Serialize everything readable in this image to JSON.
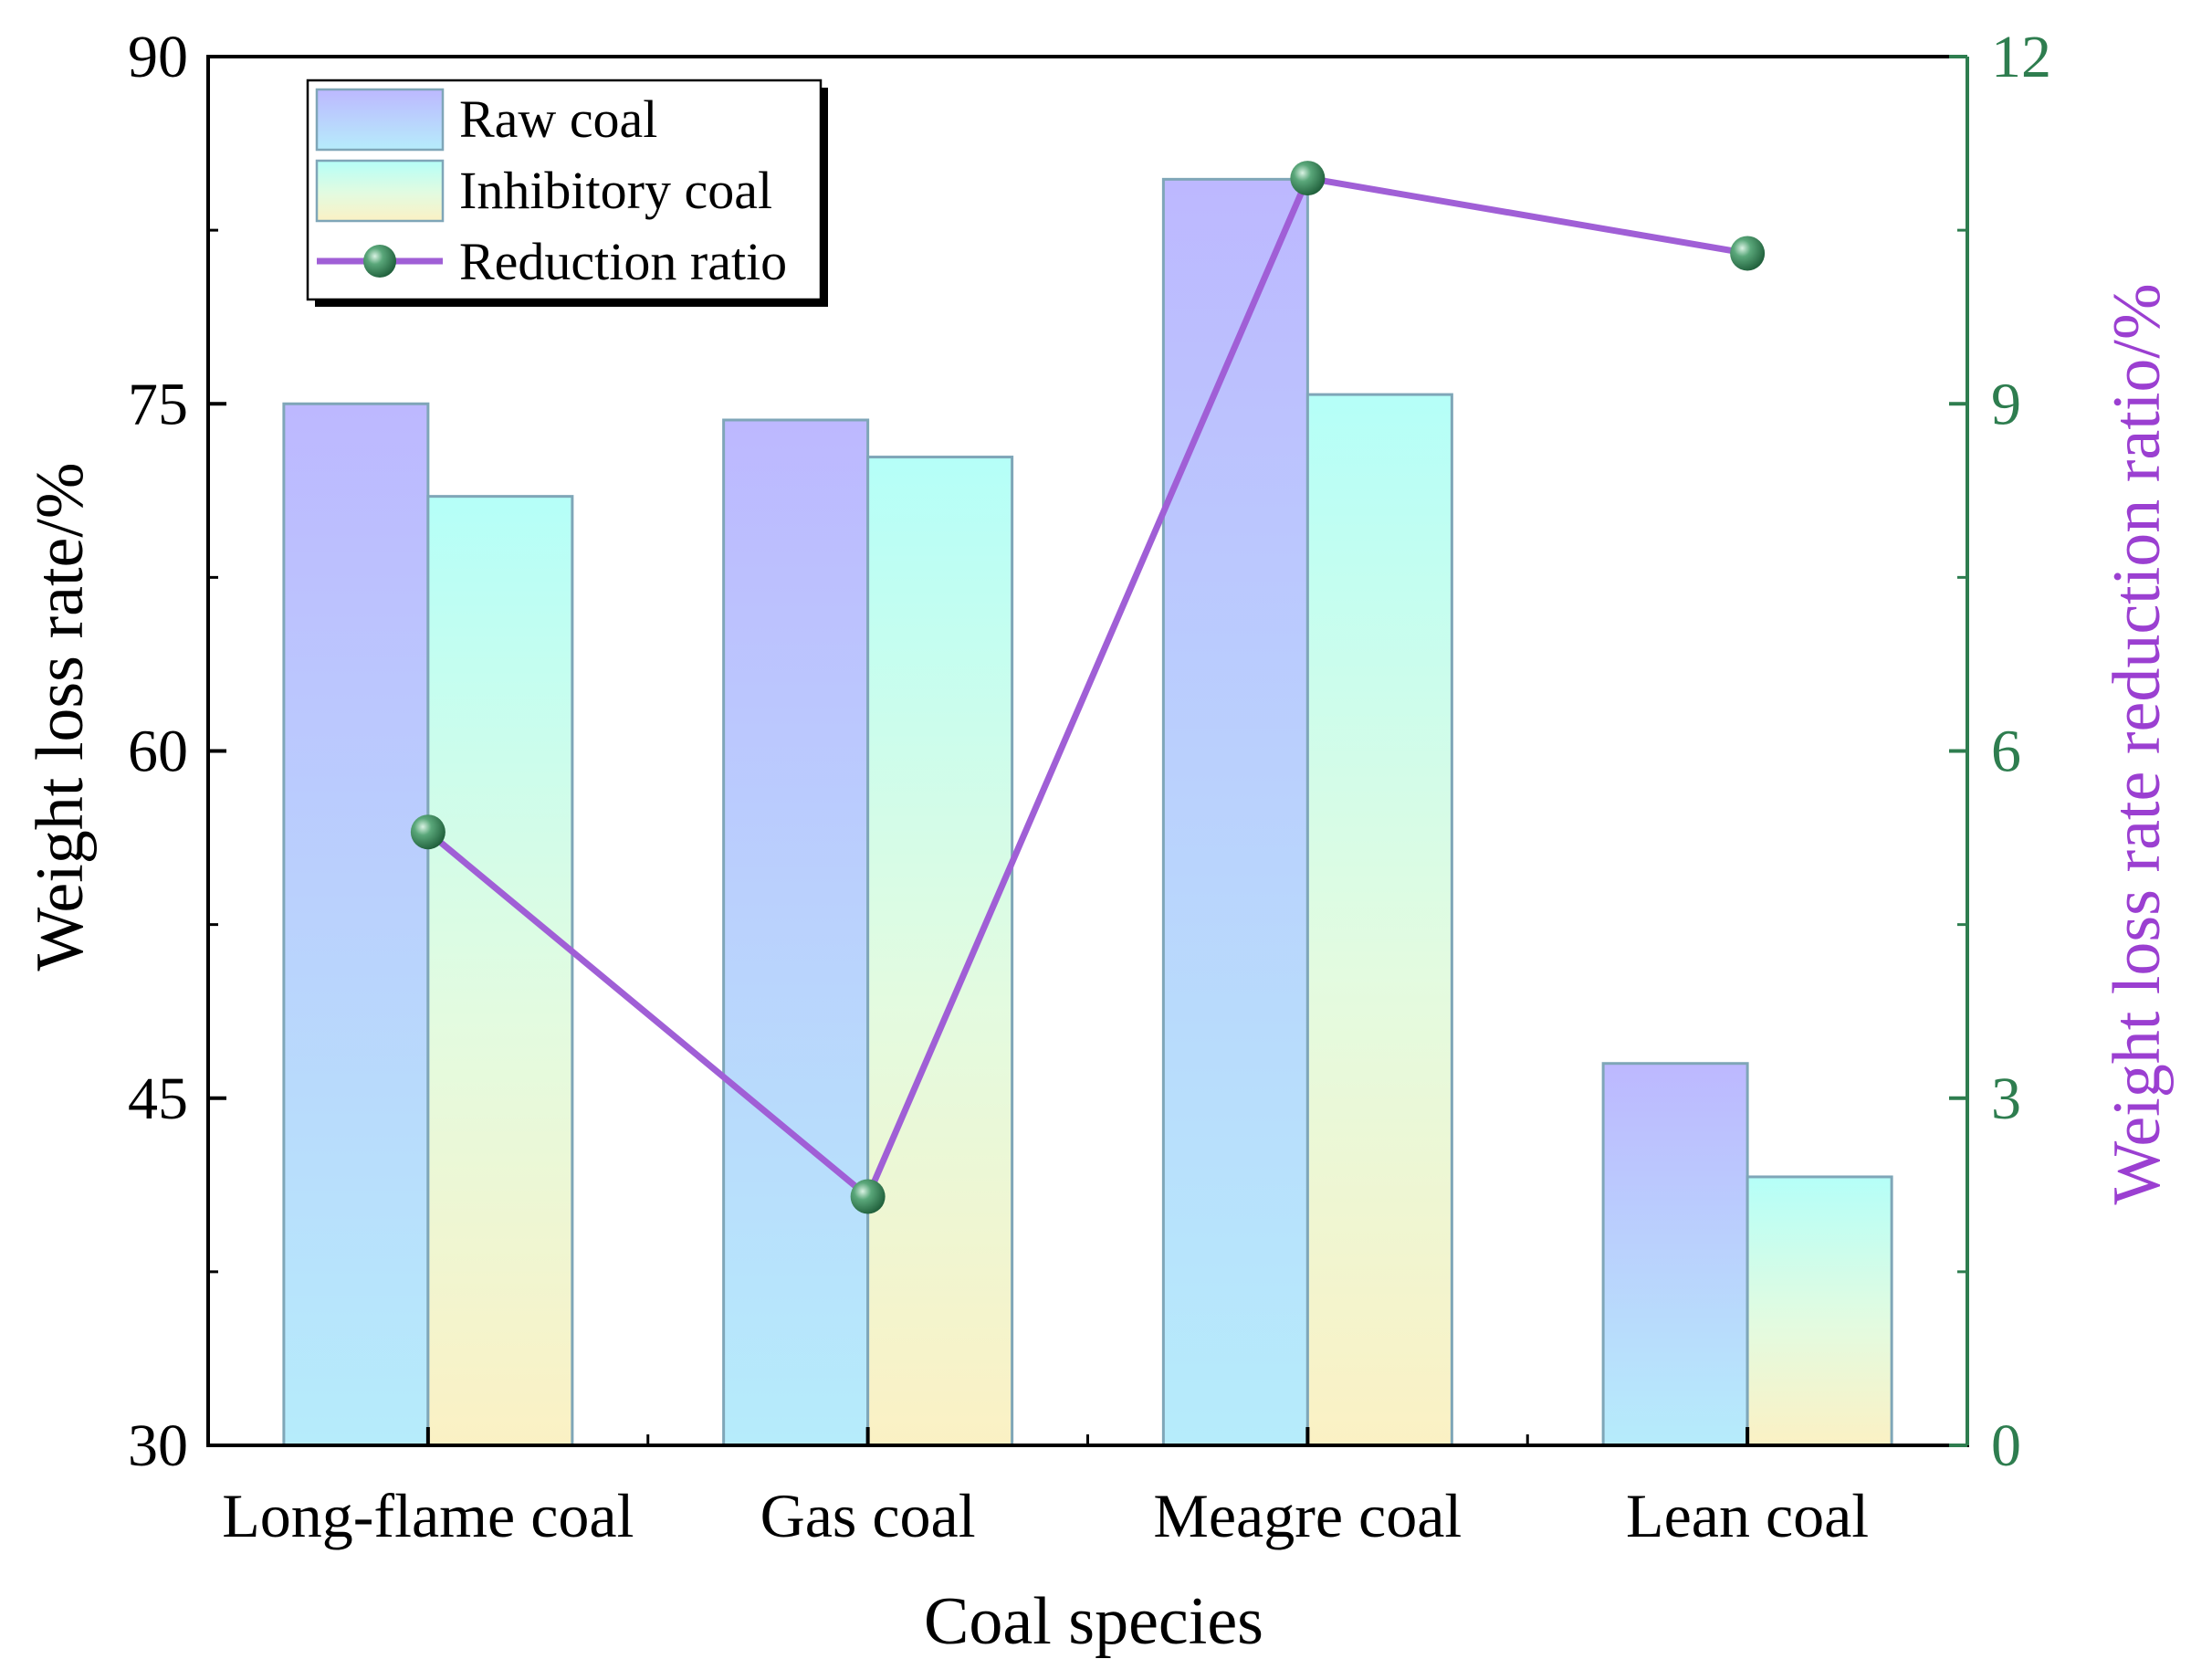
{
  "chart_data": {
    "type": "bar",
    "xlabel": "Coal species",
    "ylabel": "Weight loss rate/%",
    "y2label": "Weight loss rate reduction ratio/%",
    "categories": [
      "Long-flame coal",
      "Gas coal",
      "Meagre coal",
      "Lean coal"
    ],
    "ylim": [
      30,
      90
    ],
    "yticks": [
      30,
      45,
      60,
      75,
      90
    ],
    "y2lim": [
      0,
      12
    ],
    "y2ticks": [
      0,
      3,
      6,
      9,
      12
    ],
    "series": [
      {
        "name": "Raw coal",
        "kind": "bar",
        "axis": "left",
        "values": [
          75.0,
          74.3,
          84.7,
          46.5
        ]
      },
      {
        "name": "Inhibitory coal",
        "kind": "bar",
        "axis": "left",
        "values": [
          71.0,
          72.7,
          75.4,
          41.6
        ]
      },
      {
        "name": "Reduction ratio",
        "kind": "line",
        "axis": "right",
        "values": [
          5.3,
          2.15,
          10.95,
          10.3
        ]
      }
    ],
    "legend_position": "top-left",
    "colors": {
      "raw_top": "#bdb8ff",
      "raw_bottom": "#b6ecfb",
      "inh_top": "#b5fff8",
      "inh_bottom": "#fbf1c4",
      "bar_stroke": "#7fa6b8",
      "line": "#a05fd6",
      "marker": "#2e7d4f",
      "right_axis": "#2e7d4f",
      "right_title": "#9b3fd1"
    }
  }
}
